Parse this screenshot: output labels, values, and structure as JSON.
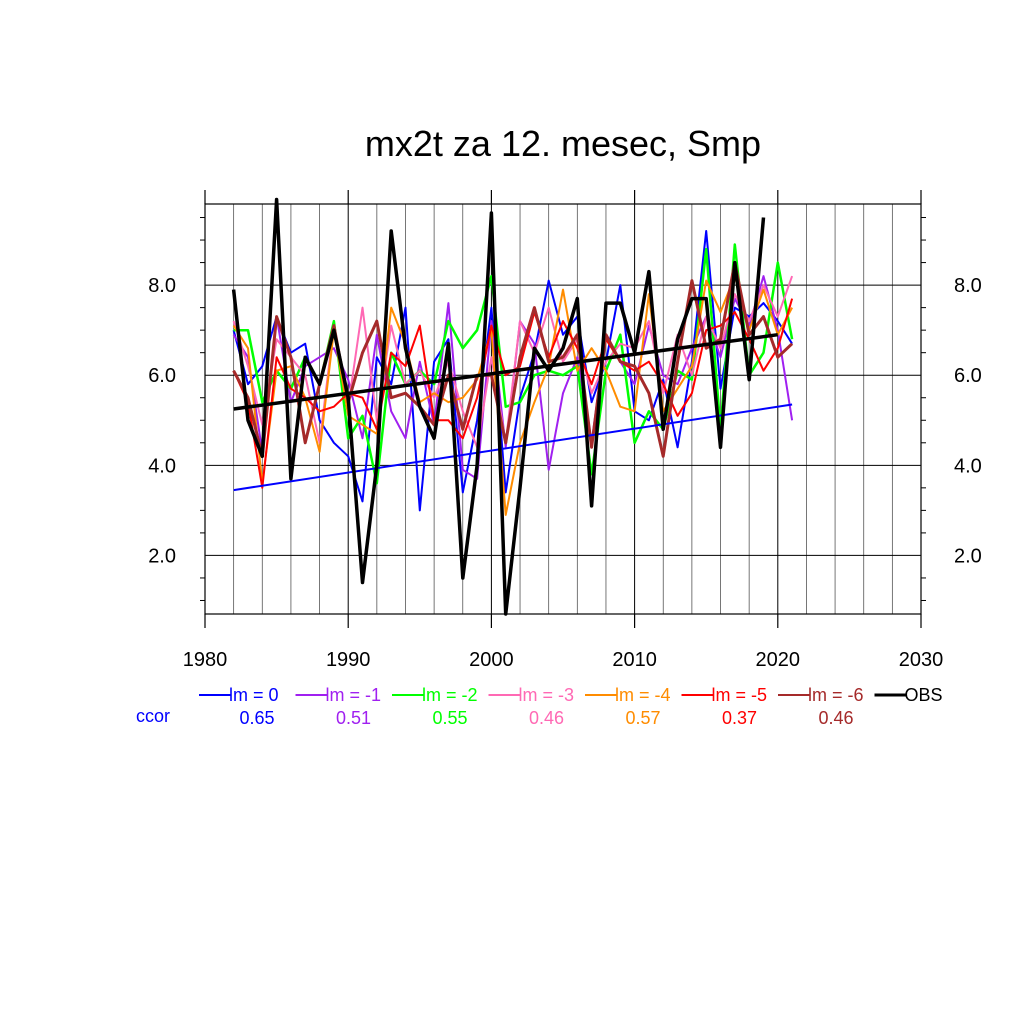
{
  "chart_data": {
    "type": "line",
    "title": "mx2t za 12. mesec, Smp",
    "xlabel": "",
    "ylabel": "",
    "xlim": [
      1980,
      2030
    ],
    "ylim": [
      0.7,
      9.8
    ],
    "x_ticks": [
      1980,
      1990,
      2000,
      2010,
      2020,
      2030
    ],
    "x_tick_labels": [
      "1980",
      "1990",
      "2000",
      "2010",
      "2020",
      "2030"
    ],
    "y_ticks": [
      2.0,
      4.0,
      6.0,
      8.0
    ],
    "y_tick_labels": [
      "2.0",
      "4.0",
      "6.0",
      "8.0"
    ],
    "grid": true,
    "legend_position": "bottom",
    "correlation_label": "ccor",
    "x": [
      1982,
      1983,
      1984,
      1985,
      1986,
      1987,
      1988,
      1989,
      1990,
      1991,
      1992,
      1993,
      1994,
      1995,
      1996,
      1997,
      1998,
      1999,
      2000,
      2001,
      2002,
      2003,
      2004,
      2005,
      2006,
      2007,
      2008,
      2009,
      2010,
      2011,
      2012,
      2013,
      2014,
      2015,
      2016,
      2017,
      2018,
      2019,
      2020,
      2021
    ],
    "series": [
      {
        "name": "lm = 0",
        "ccor": "0.65",
        "color": "#0000ff",
        "width": 2,
        "values": [
          7.0,
          5.8,
          6.2,
          7.3,
          6.5,
          6.7,
          5.0,
          4.5,
          4.2,
          3.2,
          6.4,
          5.8,
          7.5,
          3.0,
          6.3,
          6.8,
          3.4,
          5.0,
          7.5,
          3.4,
          5.5,
          6.5,
          8.1,
          6.9,
          7.3,
          5.4,
          6.3,
          8.0,
          5.2,
          5.0,
          5.9,
          4.4,
          6.3,
          9.2,
          5.7,
          7.5,
          7.3,
          7.6,
          7.2,
          6.7
        ]
      },
      {
        "name": "lm = -1",
        "ccor": "0.51",
        "color": "#a020f0",
        "width": 2,
        "values": [
          6.9,
          6.4,
          4.3,
          7.3,
          5.4,
          6.2,
          6.4,
          6.6,
          5.9,
          4.6,
          6.9,
          5.2,
          4.6,
          6.3,
          4.9,
          7.6,
          3.9,
          3.7,
          7.2,
          4.4,
          7.2,
          6.7,
          3.9,
          5.6,
          6.4,
          4.5,
          6.9,
          6.3,
          5.8,
          7.1,
          6.0,
          5.8,
          6.6,
          7.3,
          6.4,
          7.7,
          7.1,
          8.2,
          7.0,
          5.0
        ]
      },
      {
        "name": "lm = -2",
        "ccor": "0.55",
        "color": "#00ff00",
        "width": 2.5,
        "values": [
          7.0,
          7.0,
          5.4,
          6.1,
          5.7,
          6.4,
          5.8,
          7.2,
          4.6,
          5.1,
          3.6,
          6.5,
          5.8,
          6.1,
          5.8,
          7.2,
          6.6,
          7.0,
          8.2,
          5.3,
          5.4,
          6.0,
          6.1,
          6.0,
          6.2,
          3.8,
          6.1,
          6.9,
          4.5,
          5.2,
          4.8,
          6.1,
          5.9,
          8.8,
          4.8,
          8.9,
          6.0,
          6.5,
          8.5,
          6.8
        ]
      },
      {
        "name": "lm = -3",
        "ccor": "0.46",
        "color": "#ff69b4",
        "width": 2,
        "values": [
          7.2,
          6.2,
          4.9,
          6.8,
          6.4,
          6.0,
          4.5,
          7.1,
          5.3,
          7.5,
          5.0,
          7.1,
          5.8,
          6.1,
          5.5,
          6.3,
          5.2,
          4.4,
          6.4,
          4.5,
          7.2,
          6.5,
          7.5,
          6.3,
          6.8,
          5.6,
          6.3,
          6.7,
          6.6,
          7.2,
          5.6,
          6.9,
          6.0,
          7.3,
          6.6,
          7.8,
          7.2,
          8.0,
          7.3,
          8.2
        ]
      },
      {
        "name": "lm = -4",
        "ccor": "0.57",
        "color": "#ff8c00",
        "width": 2,
        "values": [
          7.1,
          6.6,
          3.6,
          6.1,
          6.2,
          5.5,
          4.3,
          7.0,
          5.1,
          4.9,
          4.7,
          7.5,
          6.7,
          5.4,
          5.6,
          5.4,
          5.5,
          5.9,
          7.0,
          2.9,
          4.5,
          5.4,
          6.2,
          7.9,
          6.1,
          6.6,
          6.1,
          5.3,
          5.2,
          7.8,
          5.2,
          5.7,
          6.2,
          8.1,
          7.4,
          8.2,
          7.0,
          7.9,
          6.9,
          7.5
        ]
      },
      {
        "name": "lm = -5",
        "ccor": "0.37",
        "color": "#ff0000",
        "width": 2,
        "values": [
          6.1,
          5.4,
          3.5,
          6.4,
          5.7,
          5.5,
          5.2,
          5.3,
          5.6,
          5.5,
          4.8,
          6.5,
          6.2,
          7.1,
          5.0,
          5.0,
          4.6,
          5.5,
          7.1,
          6.0,
          6.2,
          7.4,
          6.4,
          7.2,
          6.6,
          5.8,
          6.8,
          6.3,
          6.1,
          6.3,
          5.8,
          5.1,
          5.6,
          7.0,
          7.1,
          7.4,
          6.8,
          6.1,
          6.6,
          7.7
        ]
      },
      {
        "name": "lm = -6",
        "ccor": "0.46",
        "color": "#a52a2a",
        "width": 3,
        "values": [
          6.1,
          5.5,
          4.2,
          7.3,
          6.4,
          4.5,
          5.8,
          7.1,
          5.4,
          6.5,
          7.2,
          5.5,
          5.6,
          5.3,
          4.9,
          6.0,
          4.8,
          6.0,
          6.0,
          4.5,
          6.4,
          7.5,
          6.3,
          6.4,
          6.9,
          4.4,
          6.9,
          6.3,
          6.2,
          5.6,
          4.2,
          6.3,
          8.1,
          6.6,
          6.8,
          8.5,
          6.9,
          7.3,
          6.4,
          6.7
        ]
      }
    ],
    "observations": {
      "name": "OBS",
      "color": "#000000",
      "width": 3.5,
      "x": [
        1982,
        1983,
        1984,
        1985,
        1986,
        1987,
        1988,
        1989,
        1990,
        1991,
        1992,
        1993,
        1994,
        1995,
        1996,
        1997,
        1998,
        1999,
        2000,
        2001,
        2002,
        2003,
        2004,
        2005,
        2006,
        2007,
        2008,
        2009,
        2010,
        2011,
        2012,
        2013,
        2014,
        2015,
        2016,
        2017,
        2018,
        2019
      ],
      "values": [
        7.9,
        5.0,
        4.2,
        9.9,
        3.7,
        6.4,
        5.8,
        7.0,
        5.5,
        1.4,
        4.0,
        9.2,
        6.6,
        5.3,
        4.6,
        6.7,
        1.5,
        4.0,
        9.6,
        0.7,
        3.5,
        6.6,
        6.1,
        6.6,
        7.7,
        3.1,
        7.6,
        7.6,
        6.5,
        8.3,
        4.8,
        6.8,
        7.7,
        7.7,
        4.4,
        8.5,
        5.9,
        9.5
      ]
    },
    "trends": [
      {
        "color": "#0000ff",
        "width": 2,
        "x": [
          1982,
          2021
        ],
        "values": [
          3.45,
          5.35
        ]
      },
      {
        "color": "#000000",
        "width": 3.5,
        "x": [
          1982,
          2020
        ],
        "values": [
          5.25,
          6.9
        ]
      }
    ]
  }
}
